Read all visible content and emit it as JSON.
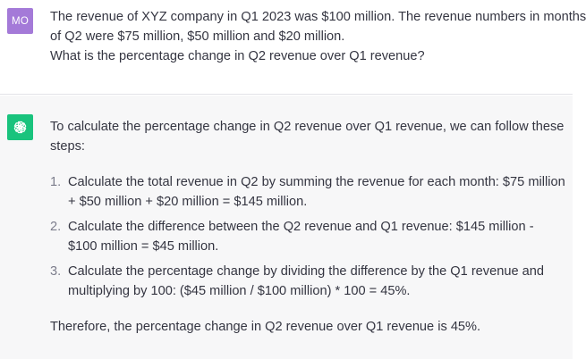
{
  "user_message": {
    "avatar_initials": "MO",
    "lines": [
      "The revenue of XYZ company in Q1 2023 was $100 million. The revenue numbers in months",
      "of Q2 were $75 million, $50 million and $20 million.",
      "What is the percentage change in Q2 revenue over Q1 revenue?"
    ]
  },
  "assistant_message": {
    "avatar_icon": "openai-logo-icon",
    "intro": "To calculate the percentage change in Q2 revenue over Q1 revenue, we can follow these steps:",
    "steps": [
      {
        "number": "1.",
        "text": "Calculate the total revenue in Q2 by summing the revenue for each month: $75 million + $50 million + $20 million = $145 million."
      },
      {
        "number": "2.",
        "text": "Calculate the difference between the Q2 revenue and Q1 revenue: $145 million - $100 million = $45 million."
      },
      {
        "number": "3.",
        "text": "Calculate the percentage change by dividing the difference by the Q1 revenue and multiplying by 100: ($45 million / $100 million) * 100 = 45%."
      }
    ],
    "conclusion": "Therefore, the percentage change in Q2 revenue over Q1 revenue is 45%."
  },
  "colors": {
    "user_avatar_bg": "#a47ad8",
    "assistant_avatar_bg": "#19c37d",
    "assistant_row_bg": "#f7f7f8",
    "text": "#343541"
  }
}
